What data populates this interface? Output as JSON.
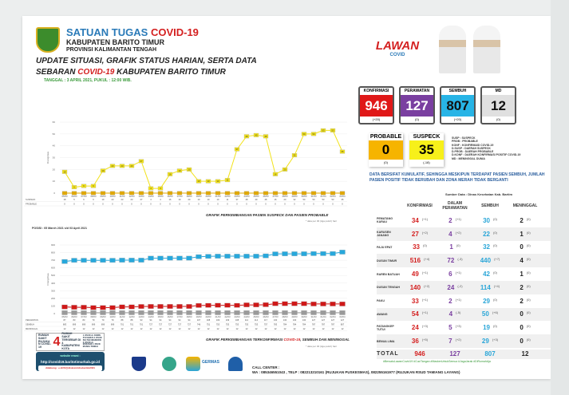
{
  "header": {
    "org_prefix": "SATUAN TUGAS ",
    "org_suffix": "COVID-19",
    "regency": "KABUPATEN BARITO TIMUR",
    "province": "PROVINSI KALIMANTAN TENGAH",
    "title_line1": "UPDATE SITUASI, GRAFIK STATUS HARIAN, SERTA DATA",
    "title_line2_a": "SEBARAN ",
    "title_line2_b": "COVID-19",
    "title_line2_c": " KABUPATEN BARITO TIMUR",
    "date": "TANGGAL : 3 APRIL 2021, PUKUL : 12:00 WIB."
  },
  "brand": {
    "line1": "LAWAN",
    "line2": "COVID"
  },
  "colors": {
    "konfirmasi": "#e01818",
    "perawatan": "#7a3fa0",
    "sembuh": "#27b4e6",
    "md": "#e0e0e0",
    "probable": "#f6b400",
    "suspeck": "#f7f01a"
  },
  "stats": [
    {
      "label": "KONFIRMASI",
      "value": "946",
      "change": "(+20)"
    },
    {
      "label": "PERAWATAN",
      "value": "127",
      "change": "(0)"
    },
    {
      "label": "SEMBUH",
      "value": "807",
      "change": "(+20)"
    },
    {
      "label": "MD",
      "value": "12",
      "change": "(0)"
    }
  ],
  "probable": {
    "label": "PROBABLE",
    "value": "0",
    "change": "(0)"
  },
  "suspeck": {
    "label": "SUSPECK",
    "value": "35",
    "change": "(-18)"
  },
  "abbrev": [
    "SUSP : SUSPECK",
    "PROB : PROBABLE",
    "KONF : KONFIRMASI COVID-19",
    "D.SUSP : DAERAH SUSPECK",
    "D.PROB : DAERAH PROBABLE",
    "D.KONF : DAERAH KONFIRMASI POSITIF COVID-19",
    "MD : MENINGGAL DUNIA"
  ],
  "note": "DATA BERSIFAT KUMULATIF, SEHINGGA MESKIPUN TERDAPAT PASIEN SEMBUH, JUMLAH PASIEN POSITIF TIDAK BERUBAH DAN ZONA MERAH TIDAK BERGANTI",
  "source": "Sumber Data : Dinas Kesehatan Kab. Bartim",
  "table": {
    "headers": [
      "KONFIRMASI",
      "DALAM PERAWATAN",
      "SEMBUH",
      "MENINGGAL"
    ],
    "rows": [
      [
        "PEMATANG KARAU",
        "34",
        "(+1)",
        "2",
        "(+1)",
        "30",
        "(0)",
        "2",
        "(0)"
      ],
      [
        "KARUSEN JANANG",
        "27",
        "(+2)",
        "4",
        "(+2)",
        "22",
        "(0)",
        "1",
        "(0)"
      ],
      [
        "PAJU EPAT",
        "33",
        "(0)",
        "1",
        "(0)",
        "32",
        "(0)",
        "0",
        "(0)"
      ],
      [
        "DUSUN TIMUR",
        "516",
        "(+4)",
        "72",
        "(-3)",
        "440",
        "(+7)",
        "4",
        "(0)"
      ],
      [
        "RAREN BATUAH",
        "49",
        "(+1)",
        "6",
        "(+1)",
        "42",
        "(0)",
        "1",
        "(0)"
      ],
      [
        "DUSUN TENGAH",
        "140",
        "(+2)",
        "24",
        "(-2)",
        "114",
        "(+4)",
        "2",
        "(0)"
      ],
      [
        "PAKU",
        "33",
        "(+1)",
        "2",
        "(+1)",
        "29",
        "(0)",
        "2",
        "(0)"
      ],
      [
        "AWANG",
        "54",
        "(+1)",
        "4",
        "(-5)",
        "50",
        "(+6)",
        "0",
        "(0)"
      ],
      [
        "PATANGKEP TUTUI",
        "24",
        "(+3)",
        "5",
        "(+3)",
        "19",
        "(0)",
        "0",
        "(0)"
      ],
      [
        "BENUA LIMA",
        "36",
        "(+5)",
        "7",
        "(+2)",
        "29",
        "(+3)",
        "0",
        "(0)"
      ]
    ],
    "total": {
      "label": "TOTAL",
      "konfirmasi": "946",
      "perawatan": "127",
      "sembuh": "807",
      "meninggal": "12"
    }
  },
  "chart_data": [
    {
      "type": "line",
      "title": "GRAFIK PERKEMBANGAN PASIEN SUSPECK DAN PASIEN PROBABLE",
      "ylabel": "Orang/Jiwa",
      "ylim": [
        0,
        60
      ],
      "footnote": "* data per 30 (tiga puluh) hari",
      "x": [
        "05/03",
        "06/03",
        "07/03",
        "08/03",
        "09/03",
        "10/03",
        "11/03",
        "12/03",
        "13/03",
        "14/03",
        "15/03",
        "16/03",
        "17/03",
        "18/03",
        "19/03",
        "20/03",
        "21/03",
        "22/03",
        "23/03",
        "24/03",
        "25/03",
        "26/03",
        "27/03",
        "28/03",
        "29/03",
        "30/03",
        "31/03",
        "01/04",
        "02/04",
        "03/04"
      ],
      "series": [
        {
          "name": "SUSPECK",
          "color": "#f2e21a",
          "values": [
            18,
            5,
            6,
            6,
            19,
            23,
            23,
            23,
            27,
            4,
            4,
            16,
            19,
            20,
            10,
            10,
            10,
            11,
            37,
            48,
            49,
            48,
            16,
            20,
            32,
            50,
            50,
            53,
            53,
            35
          ]
        },
        {
          "name": "PROBABLE",
          "color": "#e0a800",
          "values": [
            0,
            0,
            0,
            0,
            0,
            0,
            0,
            0,
            0,
            0,
            0,
            0,
            0,
            0,
            0,
            0,
            0,
            0,
            0,
            0,
            0,
            0,
            0,
            0,
            0,
            0,
            0,
            0,
            0,
            0
          ]
        }
      ]
    },
    {
      "type": "line",
      "title_a": "GRAFIK PERKEMBANGAN TERKONFIRMASI ",
      "title_b": "COVID-19",
      "title_c": ", SEMBUH DAN MENINGGAL",
      "subtitle": "POSISI : 05 March 2021 s/d 03 April 2021",
      "ylabel": "Orang/Jiwa",
      "ylim": [
        0,
        900
      ],
      "footnote": "* data per 30 (tiga puluh) hari",
      "x": [
        "05/03",
        "06/03",
        "07/03",
        "08/03",
        "09/03",
        "10/03",
        "11/03",
        "12/03",
        "13/03",
        "14/03",
        "15/03",
        "16/03",
        "17/03",
        "18/03",
        "19/03",
        "20/03",
        "21/03",
        "22/03",
        "23/03",
        "24/03",
        "25/03",
        "26/03",
        "27/03",
        "28/03",
        "29/03",
        "30/03",
        "31/03",
        "01/04",
        "02/04",
        "03/04"
      ],
      "series": [
        {
          "name": "PERAWATAN",
          "color": "#d01818",
          "values": [
            87,
            83,
            83,
            79,
            79,
            79,
            88,
            88,
            93,
            94,
            94,
            94,
            94,
            94,
            107,
            108,
            109,
            109,
            108,
            114,
            114,
            117,
            130,
            130,
            130,
            130,
            127,
            127,
            127,
            127
          ]
        },
        {
          "name": "SEMBUH",
          "color": "#27a8dc",
          "values": [
            683,
            699,
            699,
            699,
            699,
            699,
            701,
            701,
            701,
            727,
            727,
            727,
            727,
            727,
            746,
            751,
            753,
            753,
            753,
            753,
            753,
            757,
            783,
            784,
            784,
            784,
            787,
            787,
            787,
            807
          ]
        },
        {
          "name": "MENINGGAL",
          "color": "#9a9a9a",
          "values": [
            12,
            12,
            12,
            12,
            12,
            12,
            12,
            12,
            12,
            12,
            12,
            12,
            12,
            12,
            12,
            12,
            12,
            12,
            12,
            12,
            12,
            12,
            12,
            12,
            12,
            12,
            12,
            12,
            12,
            12
          ]
        }
      ]
    }
  ],
  "footer": {
    "rs_label": "RUMAH SAKIT RUJUKAN COVID-19",
    "rs_count": "4",
    "rs_desc": "RUMAH SAKIT TERSEBAR DI 4 KABUPATEN/KOTA",
    "rs_list": "1. RSUD dr. DORIS SYLVANUS 2. RSUD SULTAN IMANUDIN 3. RSUD dr. MURJANI 4. RSUD MUARA TEWEH",
    "web_label": "website resmi :",
    "web_url": "http://covid19.baritotimurkab.go.id",
    "support": "didukung : e-GOV@diskominfosbartim2021",
    "call_center_label": "CALL CENTER :",
    "call_center": "WA : 085346551043 , TELP : 082213210161 (RUJUKAN PUSKESMAS),   082255161977 (RUJUKAN RSUD TAMIANG LAYANG)",
    "hashtags": "#BersatuLawanCovid19 #CuciTangan #MaskerUntukSemua #JagaJarak #DiRumahAja",
    "germas": "GERMAS"
  }
}
